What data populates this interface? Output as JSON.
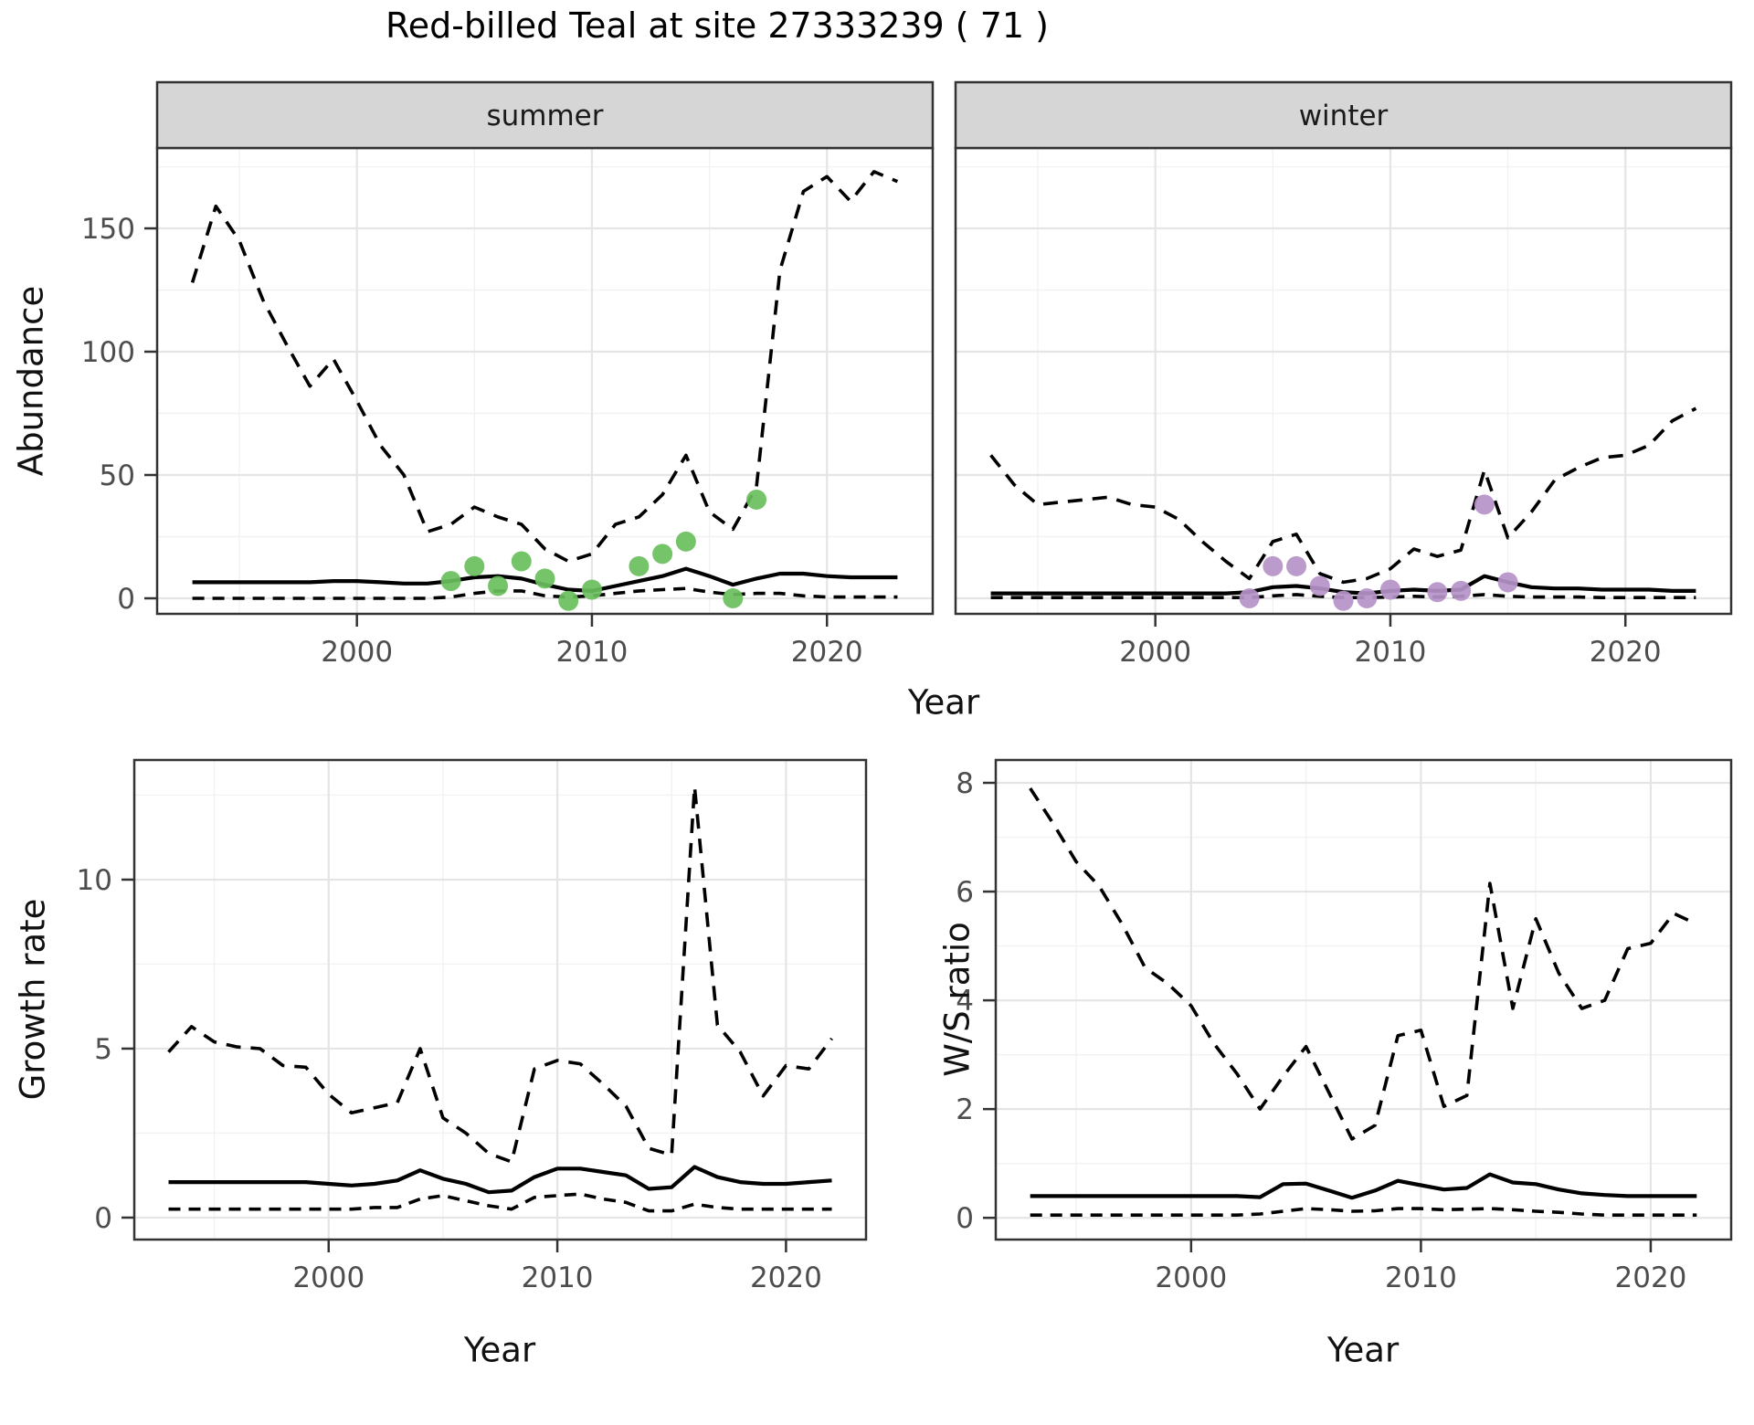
{
  "title": "Red-billed Teal at site 27333239 ( 71 )",
  "axes": {
    "x_label": "Year",
    "y_abundance": "Abundance",
    "y_growth": "Growth rate",
    "y_ratio": "W/S ratio"
  },
  "colors": {
    "summer_points": "#6abf5d",
    "winter_points": "#b593c8",
    "line": "#000000",
    "panel_border": "#333333",
    "strip_bg": "#d6d6d6",
    "grid_major": "#e5e5e5",
    "grid_minor": "#f2f2f2",
    "tick_text": "#4d4d4d"
  },
  "chart_data": [
    {
      "type": "line",
      "facet": "summer",
      "xlabel": "Year",
      "ylabel": "Abundance",
      "xlim": [
        1991.5,
        2024.5
      ],
      "ylim": [
        -6.3,
        182.6
      ],
      "xticks": [
        2000,
        2010,
        2020
      ],
      "yticks": [
        0,
        50,
        100,
        150
      ],
      "xtick_labels": [
        "2000",
        "2010",
        "2020"
      ],
      "ytick_labels": [
        "0",
        "50",
        "100",
        "150"
      ],
      "grid": true,
      "legend_position": "none",
      "x": [
        1993,
        1994,
        1995,
        1996,
        1997,
        1998,
        1999,
        2000,
        2001,
        2002,
        2003,
        2004,
        2005,
        2006,
        2007,
        2008,
        2009,
        2010,
        2011,
        2012,
        2013,
        2014,
        2015,
        2016,
        2017,
        2018,
        2019,
        2020,
        2021,
        2022,
        2023
      ],
      "series": [
        {
          "name": "upper 97.5% CI",
          "style": "dashed",
          "values": [
            128,
            159,
            145,
            121,
            103,
            86,
            97,
            80,
            62,
            50,
            27,
            30,
            37,
            33,
            30,
            20,
            15,
            18,
            30,
            33,
            42,
            58,
            35,
            28,
            45,
            133,
            165,
            171,
            161,
            173,
            169
          ]
        },
        {
          "name": "median",
          "style": "solid",
          "values": [
            6.5,
            6.5,
            6.5,
            6.5,
            6.5,
            6.5,
            7,
            7,
            6.5,
            6,
            6,
            7,
            8.5,
            9,
            8,
            5.5,
            3.5,
            3,
            5,
            7,
            9,
            12,
            9,
            5.5,
            8,
            10,
            10,
            9,
            8.5,
            8.5,
            8.5
          ]
        },
        {
          "name": "lower 2.5% CI",
          "style": "dashed",
          "values": [
            0,
            0,
            0,
            0,
            0,
            0,
            0,
            0,
            0,
            0,
            0,
            0.5,
            2,
            3,
            3,
            1,
            0.5,
            1,
            2,
            3,
            3.5,
            4,
            2.5,
            1.5,
            2,
            2,
            1,
            0.5,
            0.5,
            0.5,
            0.5
          ]
        }
      ],
      "points": {
        "name": "observed summer counts",
        "color": "#6abf5d",
        "x": [
          2004,
          2005,
          2006,
          2007,
          2008,
          2009,
          2010,
          2012,
          2013,
          2014,
          2016,
          2017
        ],
        "y": [
          7,
          13,
          5,
          15,
          8,
          -1,
          3.5,
          13,
          18,
          23,
          0,
          40
        ]
      }
    },
    {
      "type": "line",
      "facet": "winter",
      "xlabel": "Year",
      "ylabel": "Abundance",
      "xlim": [
        1991.5,
        2024.5
      ],
      "ylim": [
        -6.3,
        182.6
      ],
      "xticks": [
        2000,
        2010,
        2020
      ],
      "yticks": [
        0,
        50,
        100,
        150
      ],
      "xtick_labels": [
        "2000",
        "2010",
        "2020"
      ],
      "ytick_labels": [],
      "grid": true,
      "legend_position": "none",
      "x": [
        1993,
        1994,
        1995,
        1996,
        1997,
        1998,
        1999,
        2000,
        2001,
        2002,
        2003,
        2004,
        2005,
        2006,
        2007,
        2008,
        2009,
        2010,
        2011,
        2012,
        2013,
        2014,
        2015,
        2016,
        2017,
        2018,
        2019,
        2020,
        2021,
        2022,
        2023
      ],
      "series": [
        {
          "name": "upper 97.5% CI",
          "style": "dashed",
          "values": [
            58,
            46,
            38,
            39,
            40,
            41,
            38,
            37,
            32,
            23,
            15,
            8,
            23,
            26,
            10,
            6.5,
            8,
            12,
            20,
            17,
            19.5,
            52,
            24.5,
            35,
            48,
            53,
            57,
            58,
            62,
            72,
            77
          ]
        },
        {
          "name": "median",
          "style": "solid",
          "values": [
            2,
            2,
            2,
            2,
            2,
            2,
            2,
            2,
            2,
            2,
            2,
            2.5,
            4.5,
            5,
            4,
            2.5,
            2,
            3,
            3.5,
            3,
            3.5,
            9,
            6.5,
            4.5,
            4,
            4,
            3.5,
            3.5,
            3.5,
            3,
            3
          ]
        },
        {
          "name": "lower 2.5% CI",
          "style": "dashed",
          "values": [
            0.3,
            0.3,
            0.3,
            0.3,
            0.3,
            0.3,
            0.3,
            0.3,
            0.3,
            0.3,
            0.3,
            0.3,
            1,
            1.5,
            0.8,
            0.3,
            0.3,
            0.5,
            0.8,
            0.5,
            0.8,
            1.5,
            0.8,
            0.5,
            0.5,
            0.5,
            0.3,
            0.3,
            0.3,
            0.3,
            0.3
          ]
        }
      ],
      "points": {
        "name": "observed winter counts",
        "color": "#b593c8",
        "x": [
          2004,
          2005,
          2006,
          2007,
          2008,
          2009,
          2010,
          2012,
          2013,
          2014,
          2015
        ],
        "y": [
          0,
          13,
          13,
          5,
          -1,
          0,
          3.5,
          2.5,
          3,
          38,
          6.5
        ]
      }
    },
    {
      "type": "line",
      "facet": null,
      "xlabel": "Year",
      "ylabel": "Growth rate",
      "xlim": [
        1991.5,
        2023.5
      ],
      "ylim": [
        -0.65,
        13.54
      ],
      "xticks": [
        2000,
        2010,
        2020
      ],
      "yticks": [
        0,
        5,
        10
      ],
      "xtick_labels": [
        "2000",
        "2010",
        "2020"
      ],
      "ytick_labels": [
        "0",
        "5",
        "10"
      ],
      "grid": true,
      "legend_position": "none",
      "x": [
        1993,
        1994,
        1995,
        1996,
        1997,
        1998,
        1999,
        2000,
        2001,
        2002,
        2003,
        2004,
        2005,
        2006,
        2007,
        2008,
        2009,
        2010,
        2011,
        2012,
        2013,
        2014,
        2015,
        2016,
        2017,
        2018,
        2019,
        2020,
        2021,
        2022
      ],
      "series": [
        {
          "name": "upper 97.5% CI",
          "style": "dashed",
          "values": [
            4.9,
            5.65,
            5.2,
            5.05,
            5.0,
            4.5,
            4.45,
            3.65,
            3.1,
            3.25,
            3.4,
            5.0,
            2.95,
            2.5,
            1.9,
            1.65,
            4.4,
            4.65,
            4.55,
            3.95,
            3.3,
            2.05,
            1.85,
            12.75,
            5.7,
            4.9,
            3.6,
            4.5,
            4.4,
            5.3
          ]
        },
        {
          "name": "median",
          "style": "solid",
          "values": [
            1.05,
            1.05,
            1.05,
            1.05,
            1.05,
            1.05,
            1.05,
            1.0,
            0.95,
            1.0,
            1.1,
            1.4,
            1.15,
            1.0,
            0.75,
            0.8,
            1.2,
            1.45,
            1.45,
            1.35,
            1.25,
            0.85,
            0.9,
            1.5,
            1.2,
            1.05,
            1.0,
            1.0,
            1.05,
            1.1
          ]
        },
        {
          "name": "lower 2.5% CI",
          "style": "dashed",
          "values": [
            0.25,
            0.25,
            0.25,
            0.25,
            0.25,
            0.25,
            0.25,
            0.25,
            0.25,
            0.3,
            0.3,
            0.55,
            0.65,
            0.5,
            0.35,
            0.25,
            0.6,
            0.65,
            0.7,
            0.55,
            0.45,
            0.2,
            0.2,
            0.4,
            0.3,
            0.25,
            0.25,
            0.25,
            0.25,
            0.25
          ]
        }
      ],
      "points": null
    },
    {
      "type": "line",
      "facet": null,
      "xlabel": "Year",
      "ylabel": "W/S ratio",
      "xlim": [
        1991.5,
        2023.5
      ],
      "ylim": [
        -0.4,
        8.42
      ],
      "xticks": [
        2000,
        2010,
        2020
      ],
      "yticks": [
        0,
        2,
        4,
        6,
        8
      ],
      "xtick_labels": [
        "2000",
        "2010",
        "2020"
      ],
      "ytick_labels": [
        "0",
        "2",
        "4",
        "6",
        "8"
      ],
      "grid": true,
      "legend_position": "none",
      "x": [
        1993,
        1994,
        1995,
        1996,
        1997,
        1998,
        1999,
        2000,
        2001,
        2002,
        2003,
        2004,
        2005,
        2006,
        2007,
        2008,
        2009,
        2010,
        2011,
        2012,
        2013,
        2014,
        2015,
        2016,
        2017,
        2018,
        2019,
        2020,
        2021,
        2022
      ],
      "series": [
        {
          "name": "upper 97.5% CI",
          "style": "dashed",
          "values": [
            7.9,
            7.25,
            6.55,
            6.1,
            5.4,
            4.6,
            4.3,
            3.9,
            3.2,
            2.65,
            2.0,
            2.6,
            3.15,
            2.3,
            1.45,
            1.7,
            3.35,
            3.45,
            2.05,
            2.25,
            6.15,
            3.85,
            5.5,
            4.5,
            3.85,
            4.0,
            4.95,
            5.05,
            5.6,
            5.4
          ]
        },
        {
          "name": "median",
          "style": "solid",
          "values": [
            0.4,
            0.4,
            0.4,
            0.4,
            0.4,
            0.4,
            0.4,
            0.4,
            0.4,
            0.4,
            0.38,
            0.62,
            0.63,
            0.5,
            0.37,
            0.5,
            0.68,
            0.6,
            0.52,
            0.55,
            0.8,
            0.65,
            0.62,
            0.52,
            0.45,
            0.42,
            0.4,
            0.4,
            0.4,
            0.4
          ]
        },
        {
          "name": "lower 2.5% CI",
          "style": "dashed",
          "values": [
            0.05,
            0.05,
            0.05,
            0.05,
            0.05,
            0.05,
            0.05,
            0.05,
            0.05,
            0.05,
            0.07,
            0.12,
            0.17,
            0.15,
            0.12,
            0.13,
            0.17,
            0.17,
            0.15,
            0.16,
            0.17,
            0.15,
            0.12,
            0.1,
            0.07,
            0.05,
            0.05,
            0.05,
            0.05,
            0.05
          ]
        }
      ],
      "points": null
    }
  ]
}
